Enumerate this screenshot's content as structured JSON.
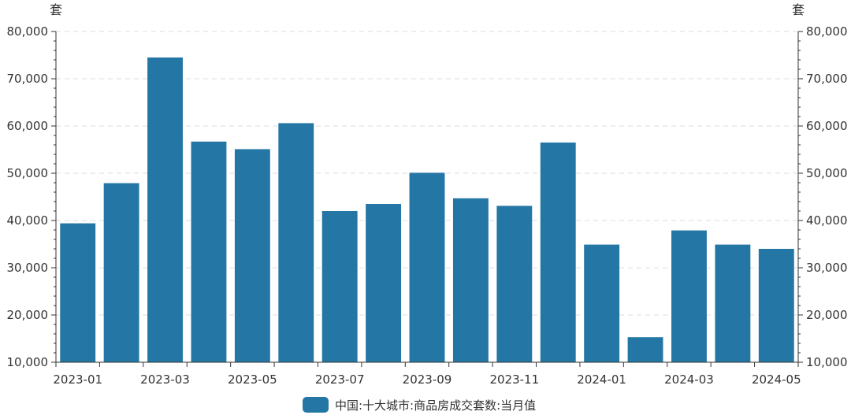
{
  "chart_data": {
    "type": "bar",
    "unit_left": "套",
    "unit_right": "套",
    "ylim": [
      10000,
      80000
    ],
    "y_ticks": [
      10000,
      20000,
      30000,
      40000,
      50000,
      60000,
      70000,
      80000
    ],
    "y_tick_labels": [
      "10,000",
      "20,000",
      "30,000",
      "40,000",
      "50,000",
      "60,000",
      "70,000",
      "80,000"
    ],
    "categories": [
      "2023-01",
      "2023-02",
      "2023-03",
      "2023-04",
      "2023-05",
      "2023-06",
      "2023-07",
      "2023-08",
      "2023-09",
      "2023-10",
      "2023-11",
      "2023-12",
      "2024-01",
      "2024-02",
      "2024-03",
      "2024-04",
      "2024-05"
    ],
    "x_tick_labels": [
      "2023-01",
      "2023-03",
      "2023-05",
      "2023-07",
      "2023-09",
      "2023-11",
      "2024-01",
      "2024-03",
      "2024-05"
    ],
    "series": [
      {
        "name": "中国:十大城市:商品房成交套数:当月值",
        "color": "#2477a5",
        "values": [
          39400,
          47900,
          74500,
          56700,
          55100,
          60600,
          42000,
          43500,
          50100,
          44700,
          43100,
          56500,
          34900,
          15300,
          37900,
          34900,
          34000
        ]
      }
    ],
    "grid": true,
    "legend_position": "bottom-center"
  }
}
